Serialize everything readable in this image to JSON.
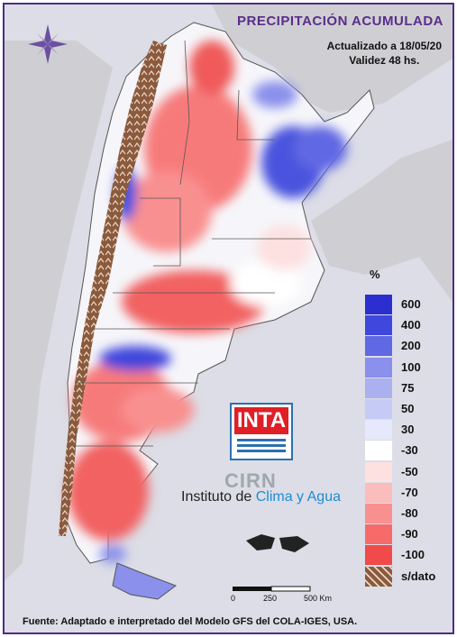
{
  "header": {
    "title": "PRECIPITACIÓN ACUMULADA",
    "updated": "Actualizado a 18/05/20",
    "validity": "Validez 48 hs."
  },
  "legend": {
    "unit": "%",
    "items": [
      {
        "label": "600",
        "color": "#2b2fcf"
      },
      {
        "label": "400",
        "color": "#3f47dc"
      },
      {
        "label": "200",
        "color": "#6068e3"
      },
      {
        "label": "100",
        "color": "#8a90eb"
      },
      {
        "label": "75",
        "color": "#aab0f0"
      },
      {
        "label": "50",
        "color": "#c6cbf6"
      },
      {
        "label": "30",
        "color": "#e6e8fb"
      },
      {
        "label": "-30",
        "color": "#ffffff"
      },
      {
        "label": "-50",
        "color": "#fde0e0"
      },
      {
        "label": "-70",
        "color": "#fbbcbc"
      },
      {
        "label": "-80",
        "color": "#f99090"
      },
      {
        "label": "-90",
        "color": "#f76a6a"
      },
      {
        "label": "-100",
        "color": "#f04a4a"
      },
      {
        "label": "s/dato",
        "color": "#8b5a3c"
      }
    ]
  },
  "logo": {
    "inta": "INTA",
    "cirn": "CIRN",
    "institute_prefix": "Instituto de ",
    "institute_highlight": "Clima y Agua"
  },
  "scale": {
    "labels": [
      "0",
      "250",
      "500 Km"
    ]
  },
  "footer": {
    "source": "Fuente: Adaptado e interpretado del Modelo GFS del COLA-IGES, USA."
  }
}
